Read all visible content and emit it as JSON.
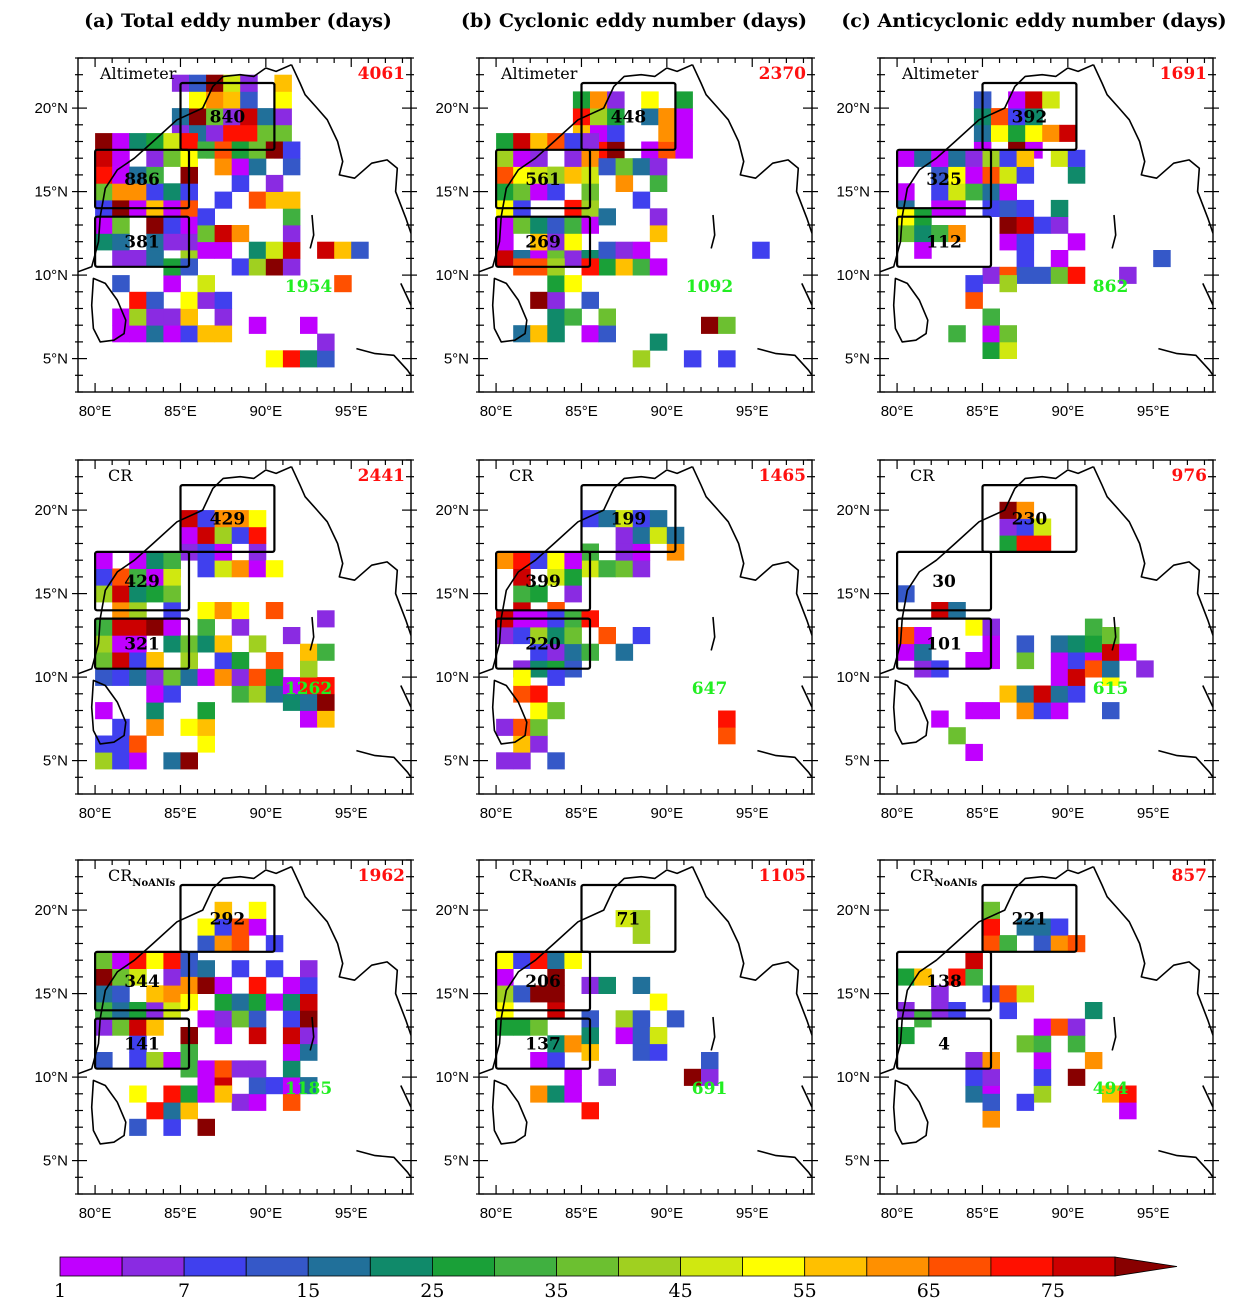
{
  "column_titles": [
    "(a) Total eddy number (days)",
    "(b) Cyclonic eddy number (days)",
    "(c) Anticyclonic eddy number (days)"
  ],
  "row_labels": [
    {
      "main": "Altimeter",
      "sub": ""
    },
    {
      "main": "CR",
      "sub": ""
    },
    {
      "main": "CR",
      "sub": "NoANIs"
    }
  ],
  "axes": {
    "x_ticks": [
      "80°E",
      "85°E",
      "90°E",
      "95°E"
    ],
    "y_ticks": [
      "20°N",
      "15°N",
      "10°N",
      "5°N"
    ],
    "xlim": [
      79,
      98.5
    ],
    "ylim": [
      3,
      23
    ]
  },
  "colorbar": {
    "labels": [
      "1",
      "7",
      "15",
      "25",
      "35",
      "45",
      "55",
      "65",
      "75"
    ],
    "colors": [
      "#c000ff",
      "#8a2be2",
      "#4040ee",
      "#3558c8",
      "#21709a",
      "#108a6a",
      "#1aa038",
      "#40b040",
      "#6cc030",
      "#a0d020",
      "#d0e810",
      "#ffff00",
      "#ffc000",
      "#ff9000",
      "#ff5000",
      "#ff1000",
      "#cc0000",
      "#880000"
    ]
  },
  "chart_data": {
    "type": "heatmap",
    "panels": [
      {
        "column": "a",
        "row": "Altimeter",
        "total": "4061",
        "open_ocean": "1954",
        "north_box": "840",
        "central_box": "886",
        "south_box": "381"
      },
      {
        "column": "b",
        "row": "Altimeter",
        "total": "2370",
        "open_ocean": "1092",
        "north_box": "448",
        "central_box": "561",
        "south_box": "269"
      },
      {
        "column": "c",
        "row": "Altimeter",
        "total": "1691",
        "open_ocean": "862",
        "north_box": "392",
        "central_box": "325",
        "south_box": "112"
      },
      {
        "column": "a",
        "row": "CR",
        "total": "2441",
        "open_ocean": "1262",
        "north_box": "429",
        "central_box": "429",
        "south_box": "321"
      },
      {
        "column": "b",
        "row": "CR",
        "total": "1465",
        "open_ocean": "647",
        "north_box": "199",
        "central_box": "399",
        "south_box": "220"
      },
      {
        "column": "c",
        "row": "CR",
        "total": "976",
        "open_ocean": "615",
        "north_box": "230",
        "central_box": "30",
        "south_box": "101"
      },
      {
        "column": "a",
        "row": "CR_NoANIs",
        "total": "1962",
        "open_ocean": "1185",
        "north_box": "292",
        "central_box": "344",
        "south_box": "141"
      },
      {
        "column": "b",
        "row": "CR_NoANIs",
        "total": "1105",
        "open_ocean": "691",
        "north_box": "71",
        "central_box": "206",
        "south_box": "137"
      },
      {
        "column": "c",
        "row": "CR_NoANIs",
        "total": "857",
        "open_ocean": "494",
        "north_box": "221",
        "central_box": "138",
        "south_box": "4"
      }
    ],
    "boxes": {
      "north": {
        "lon": [
          85,
          90.5
        ],
        "lat": [
          17.5,
          21.5
        ]
      },
      "central": {
        "lon": [
          80,
          85.5
        ],
        "lat": [
          14,
          17.5
        ]
      },
      "south": {
        "lon": [
          80,
          85.5
        ],
        "lat": [
          10.5,
          13.5
        ]
      }
    }
  }
}
